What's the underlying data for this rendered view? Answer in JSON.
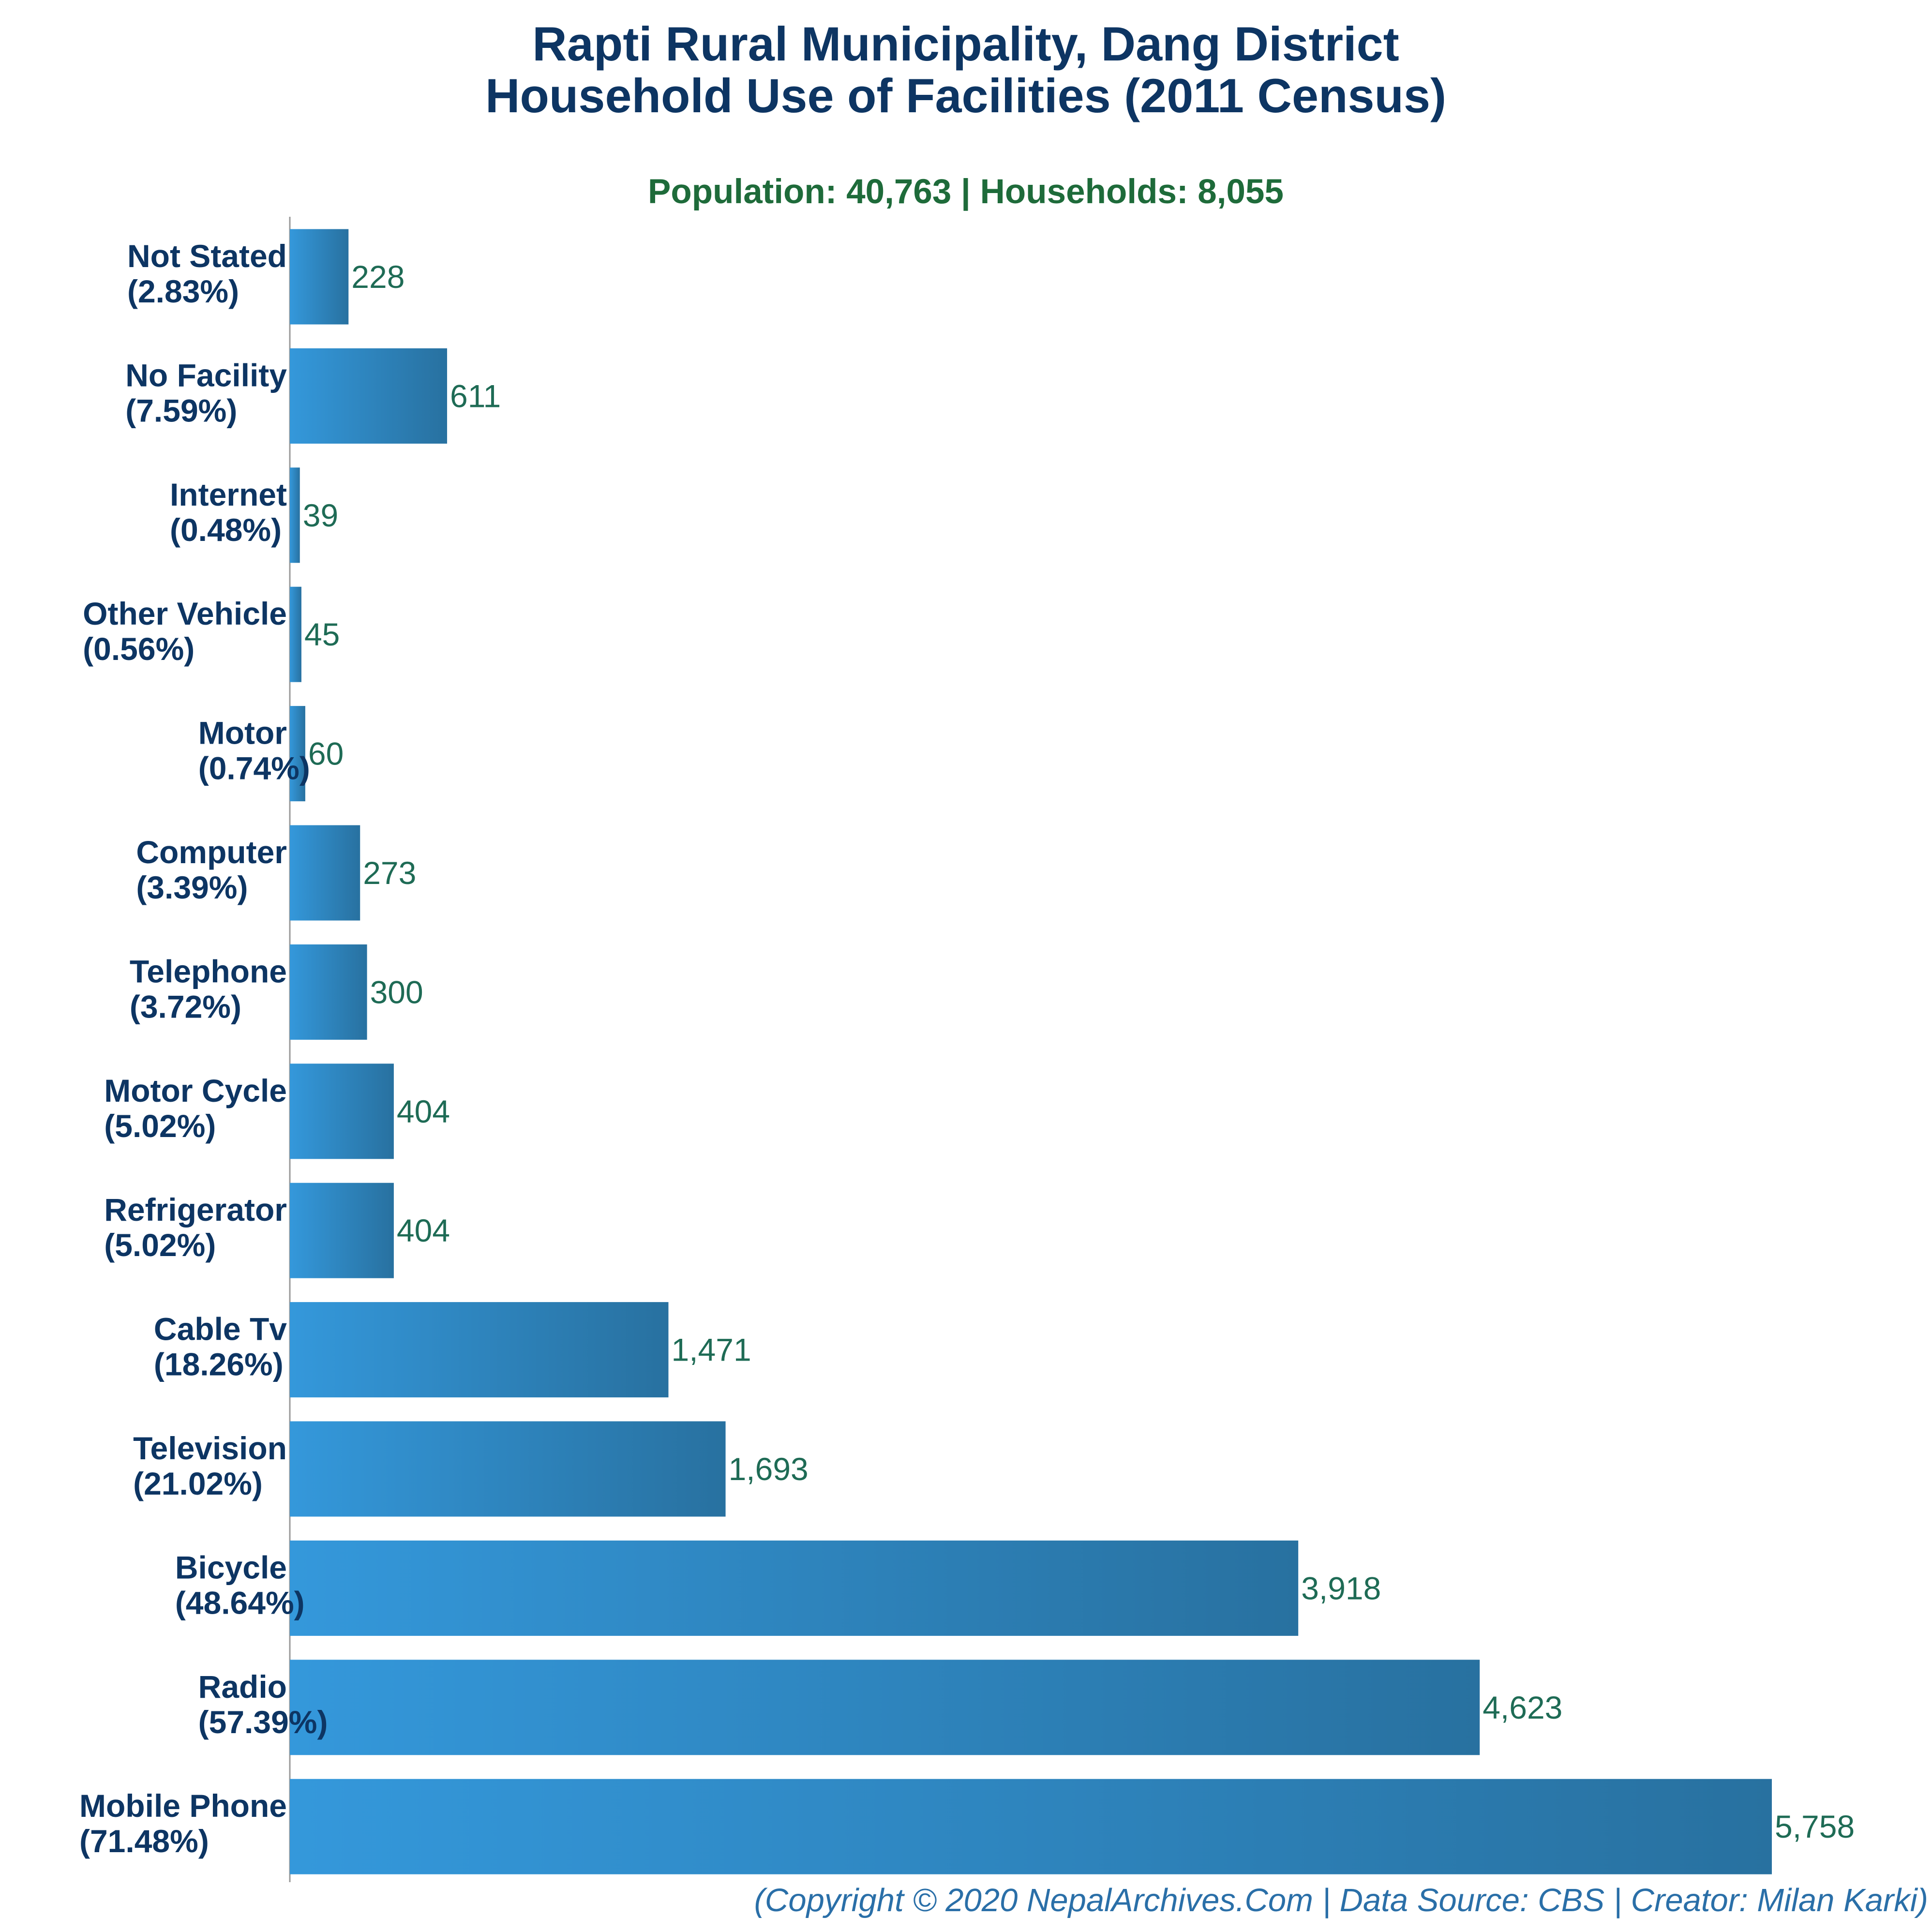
{
  "chart_data": {
    "type": "bar",
    "orientation": "horizontal",
    "title": "Rapti Rural Municipality, Dang District",
    "title_line2": "Household Use of Facilities (2011 Census)",
    "subtitle": "Population: 40,763 | Households: 8,055",
    "footer": "(Copyright © 2020 NepalArchives.Com | Data Source: CBS | Creator: Milan Karki)",
    "xlim": [
      0,
      6000
    ],
    "grid": false,
    "bar_colors": {
      "start": "#3498db",
      "end": "#2871a0"
    },
    "categories": [
      "Not Stated",
      "No Facility",
      "Internet",
      "Other Vehicle",
      "Motor",
      "Computer",
      "Telephone",
      "Motor Cycle",
      "Refrigerator",
      "Cable Tv",
      "Television",
      "Bicycle",
      "Radio",
      "Mobile Phone"
    ],
    "percent_labels": [
      "(2.83%)",
      "(7.59%)",
      "(0.48%)",
      "(0.56%)",
      "(0.74%)",
      "(3.39%)",
      "(3.72%)",
      "(5.02%)",
      "(5.02%)",
      "(18.26%)",
      "(21.02%)",
      "(48.64%)",
      "(57.39%)",
      "(71.48%)"
    ],
    "values": [
      228,
      611,
      39,
      45,
      60,
      273,
      300,
      404,
      404,
      1471,
      1693,
      3918,
      4623,
      5758
    ],
    "value_labels": [
      "228",
      "611",
      "39",
      "45",
      "60",
      "273",
      "300",
      "404",
      "404",
      "1,471",
      "1,693",
      "3,918",
      "4,623",
      "5,758"
    ]
  }
}
